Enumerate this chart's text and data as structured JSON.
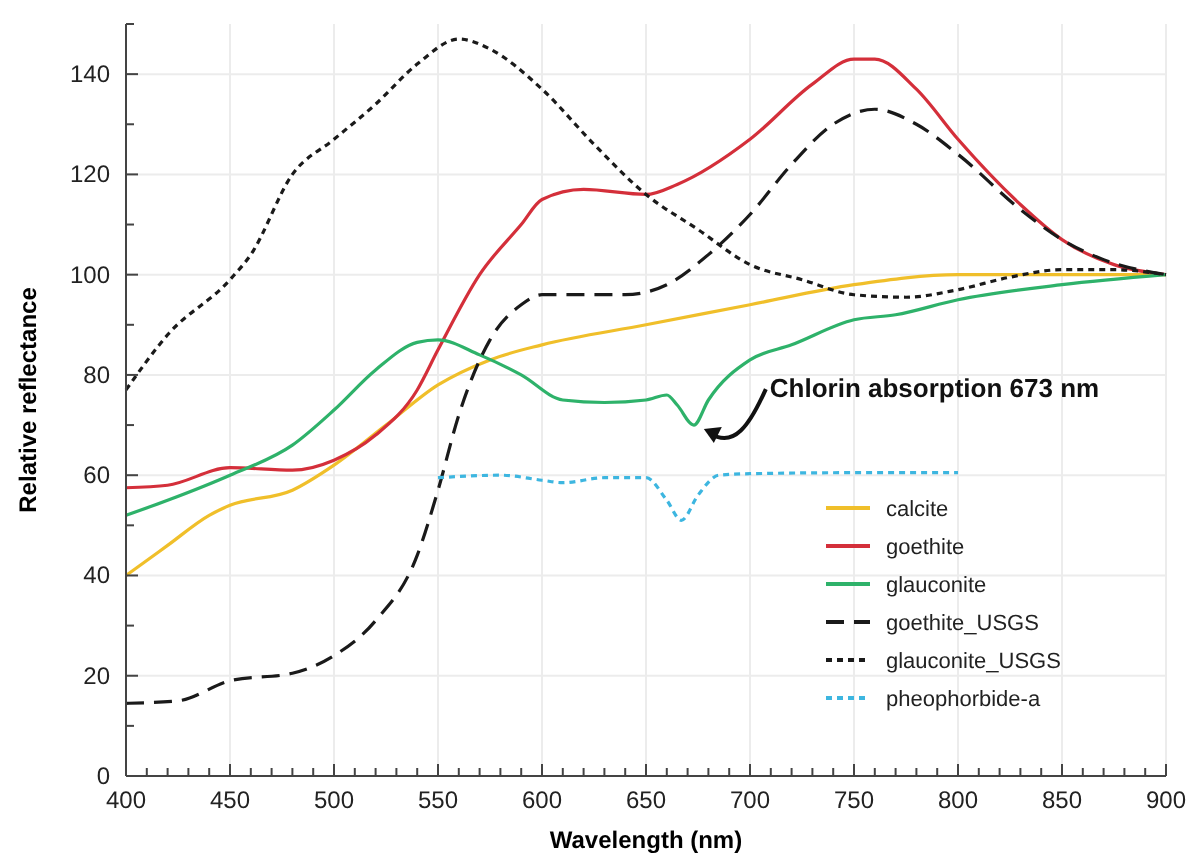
{
  "chart_data": {
    "type": "line",
    "xlabel": "Wavelength (nm)",
    "ylabel": "Relative reflectance",
    "xlim": [
      400,
      900
    ],
    "ylim": [
      0,
      150
    ],
    "xticks": [
      400,
      {
        "value": 410,
        "label": null
      },
      {
        "value": 420,
        "label": null
      },
      {
        "value": 430,
        "label": null
      },
      {
        "value": 440,
        "label": null
      },
      450,
      {
        "value": 460,
        "label": null
      },
      {
        "value": 470,
        "label": null
      },
      {
        "value": 480,
        "label": null
      },
      {
        "value": 490,
        "label": null
      },
      500,
      {
        "value": 510,
        "label": null
      },
      {
        "value": 520,
        "label": null
      },
      {
        "value": 530,
        "label": null
      },
      {
        "value": 540,
        "label": null
      },
      550,
      {
        "value": 560,
        "label": null
      },
      {
        "value": 570,
        "label": null
      },
      {
        "value": 580,
        "label": null
      },
      {
        "value": 590,
        "label": null
      },
      600,
      {
        "value": 610,
        "label": null
      },
      {
        "value": 620,
        "label": null
      },
      {
        "value": 630,
        "label": null
      },
      {
        "value": 640,
        "label": null
      },
      650,
      {
        "value": 660,
        "label": null
      },
      {
        "value": 670,
        "label": null
      },
      {
        "value": 680,
        "label": null
      },
      {
        "value": 690,
        "label": null
      },
      700,
      {
        "value": 710,
        "label": null
      },
      {
        "value": 720,
        "label": null
      },
      {
        "value": 730,
        "label": null
      },
      {
        "value": 740,
        "label": null
      },
      750,
      {
        "value": 760,
        "label": null
      },
      {
        "value": 770,
        "label": null
      },
      {
        "value": 780,
        "label": null
      },
      {
        "value": 790,
        "label": null
      },
      800,
      {
        "value": 810,
        "label": null
      },
      {
        "value": 820,
        "label": null
      },
      {
        "value": 830,
        "label": null
      },
      {
        "value": 840,
        "label": null
      },
      850,
      {
        "value": 860,
        "label": null
      },
      {
        "value": 870,
        "label": null
      },
      {
        "value": 880,
        "label": null
      },
      {
        "value": 890,
        "label": null
      },
      900
    ],
    "yticks": [
      0,
      {
        "value": 10,
        "label": null
      },
      20,
      {
        "value": 30,
        "label": null
      },
      40,
      {
        "value": 50,
        "label": null
      },
      60,
      {
        "value": 70,
        "label": null
      },
      80,
      {
        "value": 90,
        "label": null
      },
      100,
      {
        "value": 110,
        "label": null
      },
      120,
      {
        "value": 130,
        "label": null
      },
      140,
      {
        "value": 150,
        "label": null
      }
    ],
    "grid": true,
    "legend": "bottom right",
    "marker": "none",
    "annotations": [
      {
        "text": "Chlorin absorption 673 nm",
        "x": 673,
        "y": 70
      }
    ],
    "series": [
      {
        "name": "calcite",
        "color": "#f0bf2a",
        "line_style": "solid",
        "x": [
          400,
          420,
          440,
          450,
          480,
          500,
          525,
          550,
          575,
          600,
          650,
          700,
          750,
          800,
          850,
          900
        ],
        "values": [
          40,
          46,
          52,
          54,
          57,
          62,
          70,
          78,
          83,
          86,
          90,
          94,
          98,
          100,
          100,
          100
        ]
      },
      {
        "name": "goethite",
        "color": "#d42f3a",
        "line_style": "solid",
        "x": [
          400,
          420,
          450,
          480,
          500,
          520,
          540,
          550,
          570,
          590,
          600,
          620,
          650,
          665,
          700,
          730,
          750,
          760,
          780,
          800,
          830,
          850,
          875,
          900
        ],
        "values": [
          57.5,
          58,
          61.5,
          61,
          63,
          68,
          77,
          85,
          100,
          110,
          115,
          117,
          116,
          118,
          127,
          138,
          143,
          143,
          137,
          127,
          114,
          107,
          102,
          100
        ]
      },
      {
        "name": "glauconite",
        "color": "#2eb26a",
        "line_style": "solid",
        "x": [
          400,
          420,
          450,
          480,
          500,
          520,
          540,
          550,
          570,
          590,
          610,
          630,
          650,
          660,
          665,
          673,
          680,
          700,
          720,
          750,
          770,
          800,
          850,
          900
        ],
        "values": [
          52,
          55,
          60,
          66,
          73,
          81,
          86.5,
          87,
          84,
          80,
          75,
          74.5,
          75,
          76,
          74,
          70,
          75,
          83,
          86,
          91,
          92,
          95,
          98,
          100
        ]
      },
      {
        "name": "goethite_USGS",
        "color": "#1a1a1a",
        "line_style": "dashed",
        "x": [
          400,
          425,
          450,
          480,
          500,
          520,
          540,
          550,
          560,
          575,
          590,
          600,
          620,
          640,
          660,
          680,
          700,
          720,
          740,
          760,
          780,
          800,
          830,
          850,
          870,
          900
        ],
        "values": [
          14.5,
          15,
          19,
          20.5,
          24,
          31,
          44,
          57,
          72,
          87,
          94,
          96,
          96,
          96,
          98,
          104,
          112,
          122,
          130,
          133,
          130,
          124,
          113,
          107,
          103,
          100
        ]
      },
      {
        "name": "glauconite_USGS",
        "color": "#1a1a1a",
        "line_style": "dotted",
        "x": [
          400,
          420,
          450,
          460,
          480,
          500,
          520,
          540,
          560,
          575,
          600,
          625,
          650,
          675,
          700,
          725,
          750,
          775,
          800,
          825,
          850,
          875,
          900
        ],
        "values": [
          77,
          88,
          99,
          104,
          120,
          127,
          134,
          142,
          147,
          145,
          137,
          126,
          116,
          109,
          102,
          99,
          96,
          95.5,
          97,
          99.5,
          101,
          101,
          100
        ]
      },
      {
        "name": "pheophorbide-a",
        "color": "#3db6e0",
        "line_style": "dotted",
        "x": [
          550,
          580,
          600,
          610,
          630,
          650,
          660,
          667,
          675,
          685,
          700,
          750,
          800
        ],
        "values": [
          59.5,
          60,
          59,
          58.5,
          59.5,
          59.5,
          55,
          51,
          56,
          60,
          60.3,
          60.5,
          60.5
        ]
      }
    ]
  }
}
